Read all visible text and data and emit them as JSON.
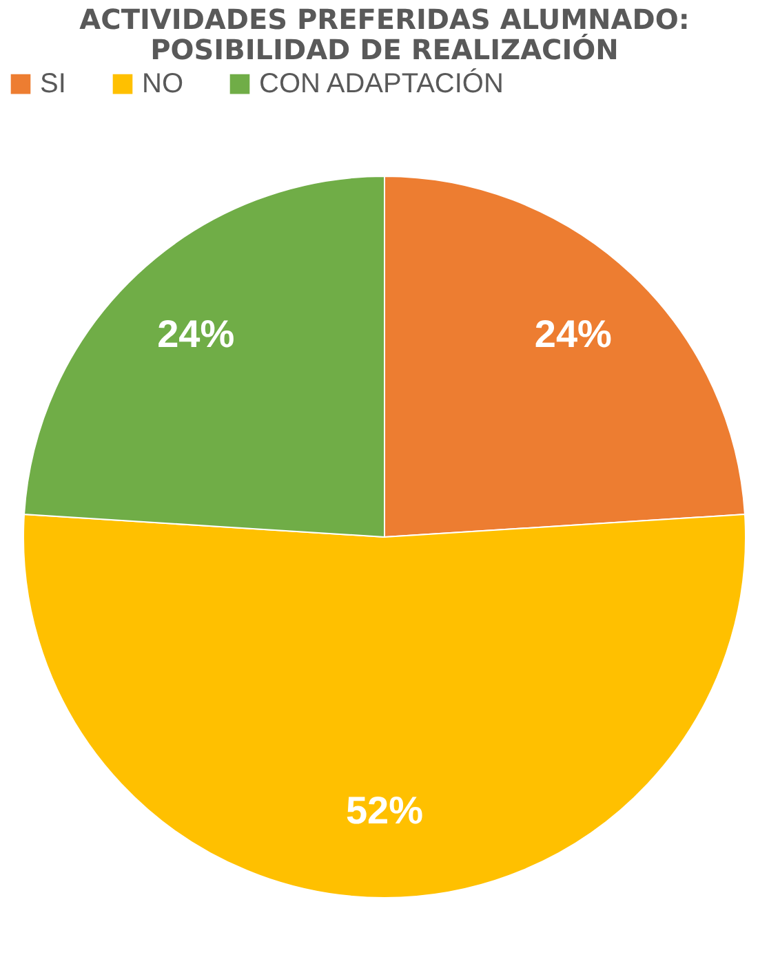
{
  "chart_data": {
    "type": "pie",
    "title": "ACTIVIDADES PREFERIDAS ALUMNADO:\nPOSIBILIDAD DE REALIZACIÓN",
    "categories": [
      "SI",
      "NO",
      "CON ADAPTACIÓN"
    ],
    "values": [
      24,
      52,
      24
    ],
    "colors": [
      "#ed7d31",
      "#ffc000",
      "#70ad47"
    ],
    "value_labels": [
      "24%",
      "52%",
      "24%"
    ],
    "legend": "top"
  }
}
